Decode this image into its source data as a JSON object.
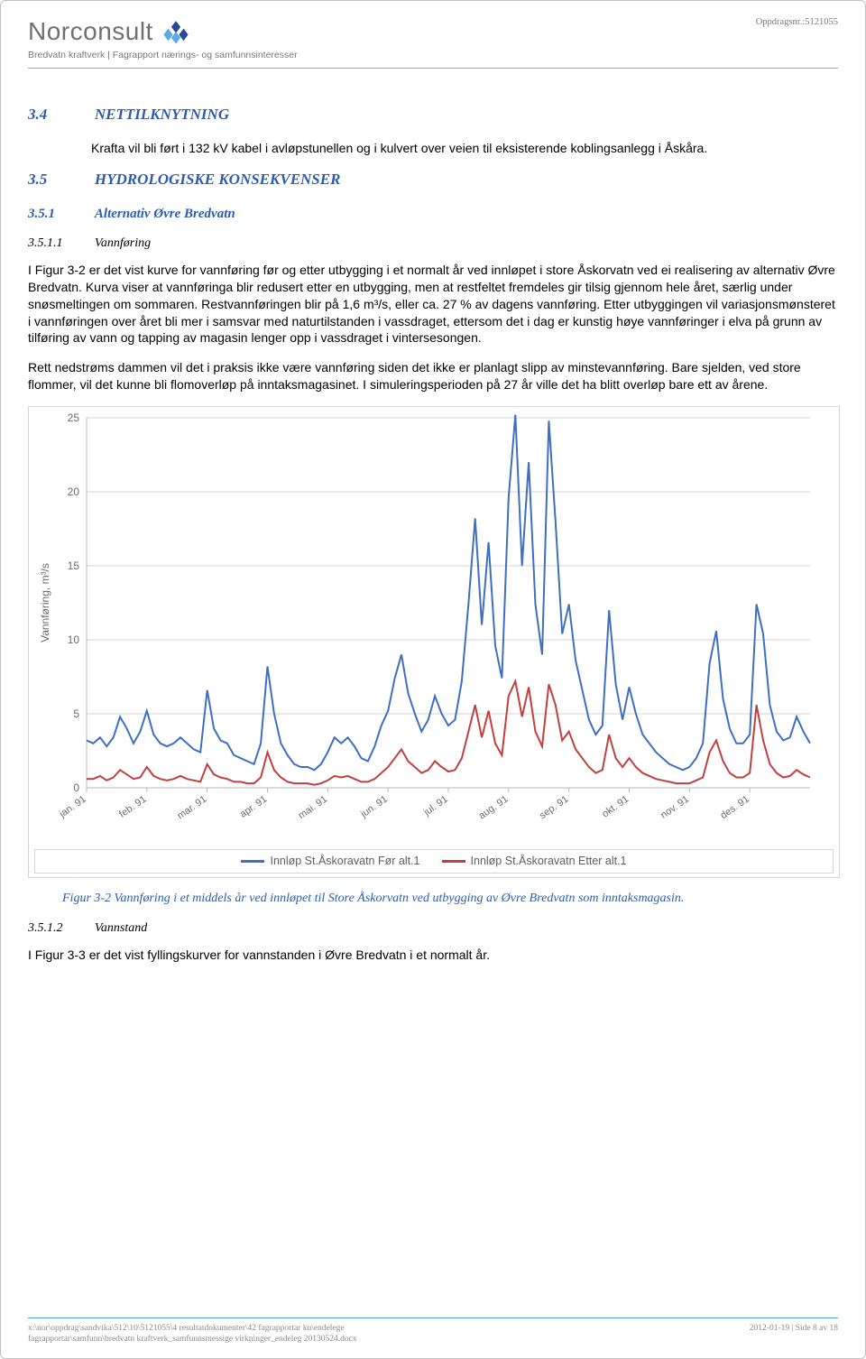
{
  "header": {
    "company": "Norconsult",
    "doc_title": "Bredvatn kraftverk | Fagrapport nærings- og samfunnsinteresser",
    "oppdrag_label": "Oppdragsnr.:5121055",
    "logo_colors": {
      "dark": "#264a9b",
      "light": "#5da9e2"
    }
  },
  "section_34": {
    "num": "3.4",
    "title": "NETTILKNYTNING",
    "para": "Krafta vil bli ført i 132 kV kabel i avløpstunellen og i kulvert over veien til eksisterende koblingsanlegg i Åskåra."
  },
  "section_35": {
    "num": "3.5",
    "title": "HYDROLOGISKE KONSEKVENSER"
  },
  "section_351": {
    "num": "3.5.1",
    "title": "Alternativ Øvre Bredvatn"
  },
  "section_3511": {
    "num": "3.5.1.1",
    "title": "Vannføring",
    "para1": "I Figur 3-2 er det vist kurve for vannføring før og etter utbygging i et normalt år ved innløpet i store Åskorvatn ved ei realisering av alternativ Øvre Bredvatn. Kurva viser at vannføringa blir redusert etter en utbygging, men at restfeltet fremdeles gir tilsig gjennom hele året, særlig under snøsmeltingen om sommaren. Restvannføringen blir på 1,6 m³/s, eller ca. 27 % av dagens vannføring. Etter utbyggingen vil variasjonsmønsteret i vannføringen over året bli mer i samsvar med naturtilstanden i vassdraget, ettersom det i dag er kunstig høye vannføringer i elva på grunn av tilføring av vann og tapping av magasin lenger opp i vassdraget i vintersesongen.",
    "para2": "Rett nedstrøms dammen vil det i praksis ikke være vannføring siden det ikke er planlagt slipp av minstevannføring. Bare sjelden, ved store flommer, vil det kunne bli flomoverløp på inntaksmagasinet. I simuleringsperioden på 27 år ville det ha blitt overløp bare ett av årene."
  },
  "figure": {
    "caption": "Figur 3-2 Vannføring i et middels år ved innløpet til Store Åskorvatn ved utbygging av Øvre Bredvatn som inntaksmagasin.",
    "chart": {
      "type": "line",
      "ylabel": "Vannføring, m³/s",
      "ylabel_fontsize": 12,
      "ylim": [
        0,
        25
      ],
      "ytick_step": 5,
      "yticks": [
        0,
        5,
        10,
        15,
        20,
        25
      ],
      "x_categories": [
        "jan. 91",
        "feb. 91",
        "mar. 91",
        "apr. 91",
        "mai. 91",
        "jun. 91",
        "jul. 91",
        "aug. 91",
        "sep. 91",
        "okt. 91",
        "nov. 91",
        "des. 91"
      ],
      "xlabel_rotation": -35,
      "xlabel_fontsize": 11,
      "tick_fontsize": 12,
      "background_color": "#ffffff",
      "grid_color": "#d6d6d6",
      "axis_color": "#b8b8b8",
      "series": [
        {
          "name": "Innløp St.Åskoravatn Før alt.1",
          "color": "#3e6fc1",
          "line_width": 2,
          "values": [
            3.2,
            3.0,
            3.4,
            2.8,
            3.4,
            4.8,
            4.0,
            3.0,
            3.8,
            5.2,
            3.6,
            3.0,
            2.8,
            3.0,
            3.4,
            3.0,
            2.6,
            2.4,
            6.6,
            4.0,
            3.2,
            3.0,
            2.2,
            2.0,
            1.8,
            1.6,
            3.0,
            8.2,
            5.0,
            3.0,
            2.2,
            1.6,
            1.4,
            1.4,
            1.2,
            1.6,
            2.4,
            3.4,
            3.0,
            3.4,
            2.8,
            2.0,
            1.8,
            2.8,
            4.2,
            5.2,
            7.4,
            9.0,
            6.4,
            5.0,
            3.8,
            4.6,
            6.2,
            5.0,
            4.2,
            4.6,
            7.2,
            12.4,
            18.2,
            11.0,
            16.6,
            9.6,
            7.4,
            19.6,
            25.2,
            15.0,
            22.0,
            12.4,
            9.0,
            24.8,
            18.0,
            10.4,
            12.4,
            8.6,
            6.6,
            4.6,
            3.6,
            4.2,
            12.0,
            7.0,
            4.6,
            6.8,
            5.0,
            3.6,
            3.0,
            2.4,
            2.0,
            1.6,
            1.4,
            1.2,
            1.4,
            2.0,
            3.0,
            8.4,
            10.6,
            6.0,
            4.0,
            3.0,
            3.0,
            3.6,
            12.4,
            10.4,
            5.6,
            3.8,
            3.2,
            3.4,
            4.8,
            3.8,
            3.0
          ]
        },
        {
          "name": "Innløp St.Åskoravatn Etter alt.1",
          "color": "#c1403f",
          "line_width": 2,
          "values": [
            0.6,
            0.6,
            0.8,
            0.5,
            0.7,
            1.2,
            0.9,
            0.6,
            0.7,
            1.4,
            0.8,
            0.6,
            0.5,
            0.6,
            0.8,
            0.6,
            0.5,
            0.4,
            1.6,
            0.9,
            0.7,
            0.6,
            0.4,
            0.4,
            0.3,
            0.3,
            0.7,
            2.4,
            1.2,
            0.7,
            0.4,
            0.3,
            0.3,
            0.3,
            0.2,
            0.3,
            0.5,
            0.8,
            0.7,
            0.8,
            0.6,
            0.4,
            0.4,
            0.6,
            1.0,
            1.4,
            2.0,
            2.6,
            1.8,
            1.4,
            1.0,
            1.2,
            1.8,
            1.4,
            1.1,
            1.2,
            2.0,
            3.8,
            5.6,
            3.4,
            5.2,
            3.0,
            2.2,
            6.2,
            7.2,
            4.8,
            6.8,
            3.8,
            2.8,
            7.0,
            5.6,
            3.2,
            3.8,
            2.6,
            2.0,
            1.4,
            1.0,
            1.2,
            3.6,
            2.0,
            1.4,
            2.0,
            1.4,
            1.0,
            0.8,
            0.6,
            0.5,
            0.4,
            0.3,
            0.3,
            0.3,
            0.5,
            0.7,
            2.4,
            3.2,
            1.8,
            1.0,
            0.7,
            0.7,
            1.0,
            5.6,
            3.2,
            1.6,
            1.0,
            0.7,
            0.8,
            1.2,
            0.9,
            0.7
          ]
        }
      ]
    }
  },
  "section_3512": {
    "num": "3.5.1.2",
    "title": "Vannstand",
    "para": "I Figur 3-3 er det vist fyllingskurver for vannstanden i Øvre Bredvatn i et normalt år."
  },
  "footer": {
    "path1": "x:\\nor\\oppdrag\\sandvika\\512\\10\\5121055\\4 resultatdokumenter\\42 fagrapportar ku\\endelege",
    "path2": "fagrapportar\\samfunn\\bredvatn kraftverk_samfunnsmessige virkninger_endeleg 20130524.docx",
    "right": "2012-01-19 | Side 8 av 18"
  }
}
